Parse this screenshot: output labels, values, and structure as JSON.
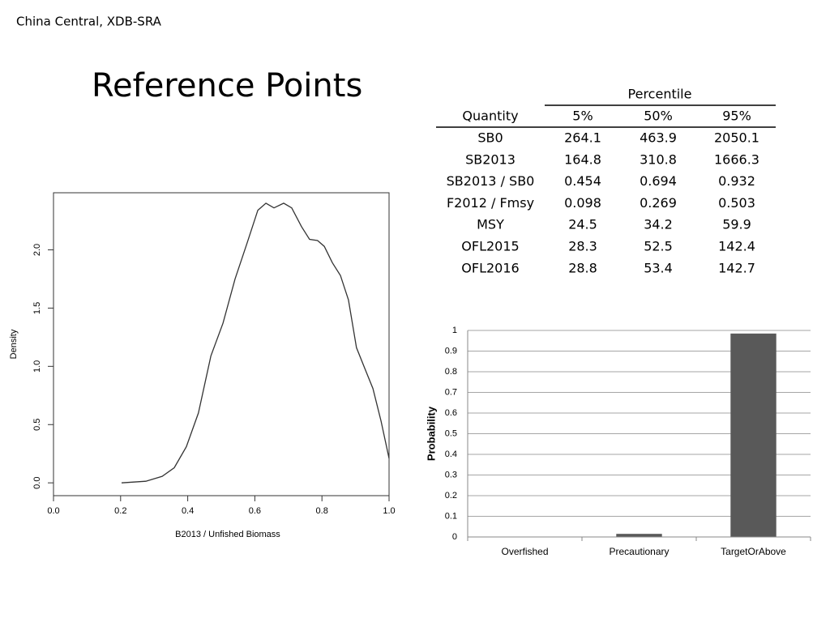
{
  "header": {
    "subtitle": "China Central, XDB-SRA",
    "title": "Reference Points"
  },
  "table": {
    "group_header": "Percentile",
    "columns": [
      "Quantity",
      "5%",
      "50%",
      "95%"
    ],
    "rows": [
      [
        "SB0",
        "264.1",
        "463.9",
        "2050.1"
      ],
      [
        "SB2013",
        "164.8",
        "310.8",
        "1666.3"
      ],
      [
        "SB2013 / SB0",
        "0.454",
        "0.694",
        "0.932"
      ],
      [
        "F2012 / Fmsy",
        "0.098",
        "0.269",
        "0.503"
      ],
      [
        "MSY",
        "24.5",
        "34.2",
        "59.9"
      ],
      [
        "OFL2015",
        "28.3",
        "52.5",
        "142.4"
      ],
      [
        "OFL2016",
        "28.8",
        "53.4",
        "142.7"
      ]
    ]
  },
  "chart_data": [
    {
      "type": "line",
      "x_label": "B2013 / Unfished Biomass",
      "y_label": "Density",
      "color": "#333333",
      "x": [
        0.203,
        0.275,
        0.324,
        0.36,
        0.396,
        0.432,
        0.469,
        0.505,
        0.541,
        0.577,
        0.609,
        0.633,
        0.657,
        0.686,
        0.71,
        0.739,
        0.763,
        0.787,
        0.807,
        0.831,
        0.855,
        0.879,
        0.903,
        0.928,
        0.952,
        0.976,
        1.0
      ],
      "values": [
        0,
        0.014,
        0.056,
        0.13,
        0.31,
        0.6,
        1.09,
        1.37,
        1.75,
        2.06,
        2.34,
        2.4,
        2.36,
        2.4,
        2.36,
        2.2,
        2.09,
        2.08,
        2.03,
        1.89,
        1.78,
        1.57,
        1.16,
        0.98,
        0.81,
        0.53,
        0.21
      ],
      "xlim": [
        0,
        1
      ],
      "ylim": [
        -0.11,
        2.49
      ],
      "xticks": [
        {
          "value": 0,
          "label": "0.0"
        },
        {
          "value": 0.2,
          "label": "0.2"
        },
        {
          "value": 0.4,
          "label": "0.4"
        },
        {
          "value": 0.6,
          "label": "0.6"
        },
        {
          "value": 0.8,
          "label": "0.8"
        },
        {
          "value": 1,
          "label": "1.0"
        }
      ],
      "yticks": [
        {
          "value": 0,
          "label": "0.0"
        },
        {
          "value": 0.5,
          "label": "0.5"
        },
        {
          "value": 1,
          "label": "1.0"
        },
        {
          "value": 1.5,
          "label": "1.5"
        },
        {
          "value": 2,
          "label": "2.0"
        }
      ]
    },
    {
      "type": "bar",
      "y_label": "Probability",
      "color": "#595959",
      "categories": [
        "Overfished",
        "Precautionary",
        "TargetOrAbove"
      ],
      "values": [
        0,
        0.015,
        0.985
      ],
      "ylim": [
        0,
        1
      ],
      "yticks": [
        0,
        0.1,
        0.2,
        0.3,
        0.4,
        0.5,
        0.6,
        0.7,
        0.8,
        0.9,
        1
      ],
      "grid": true
    }
  ]
}
